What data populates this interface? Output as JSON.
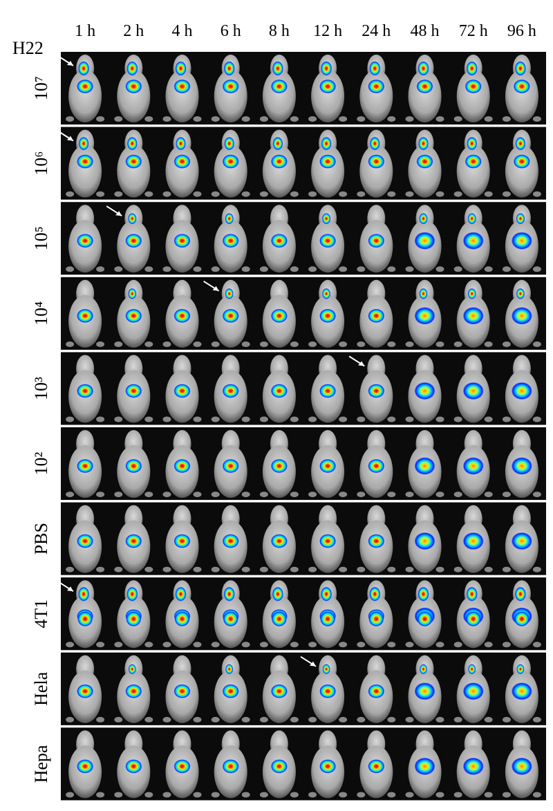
{
  "figure": {
    "cell_line_label": "H22",
    "time_points": [
      "1 h",
      "2 h",
      "4 h",
      "6 h",
      "8 h",
      "12 h",
      "24 h",
      "48 h",
      "72 h",
      "96 h"
    ],
    "row_labels": [
      "10⁷",
      "10⁶",
      "10⁵",
      "10⁴",
      "10³",
      "10²",
      "PBS",
      "4T1",
      "Hela",
      "Hepa"
    ]
  }
}
